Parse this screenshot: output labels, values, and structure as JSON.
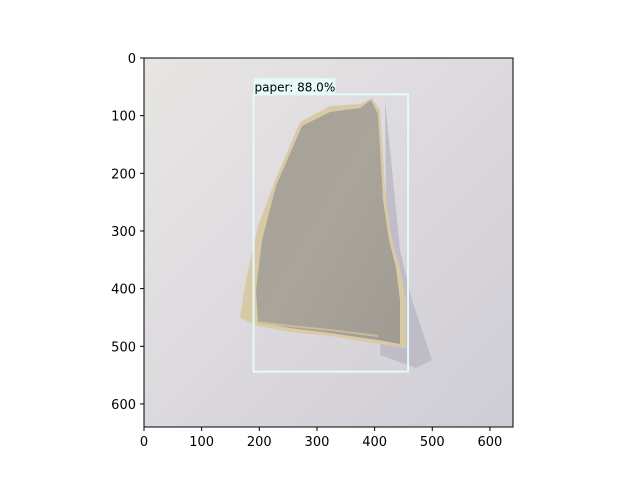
{
  "figure": {
    "x_ticks": [
      "0",
      "100",
      "200",
      "300",
      "400",
      "500",
      "600"
    ],
    "y_ticks": [
      "0",
      "100",
      "200",
      "300",
      "400",
      "500",
      "600"
    ],
    "image_extent": {
      "width": 640,
      "height": 640
    }
  },
  "detection": {
    "label": "paper: 88.0%",
    "class": "paper",
    "confidence_percent": 88.0,
    "box": {
      "x_min": 190,
      "y_min": 63,
      "x_max": 458,
      "y_max": 544
    },
    "box_color": "#e6fafa",
    "label_bg_color": "#e6fafa"
  },
  "photo": {
    "description_colors": {
      "background": "#d8d6db",
      "paper_face": "#a8a39a",
      "paper_edge": "#d7c9a5",
      "shadow": "#b7b4c0"
    }
  }
}
